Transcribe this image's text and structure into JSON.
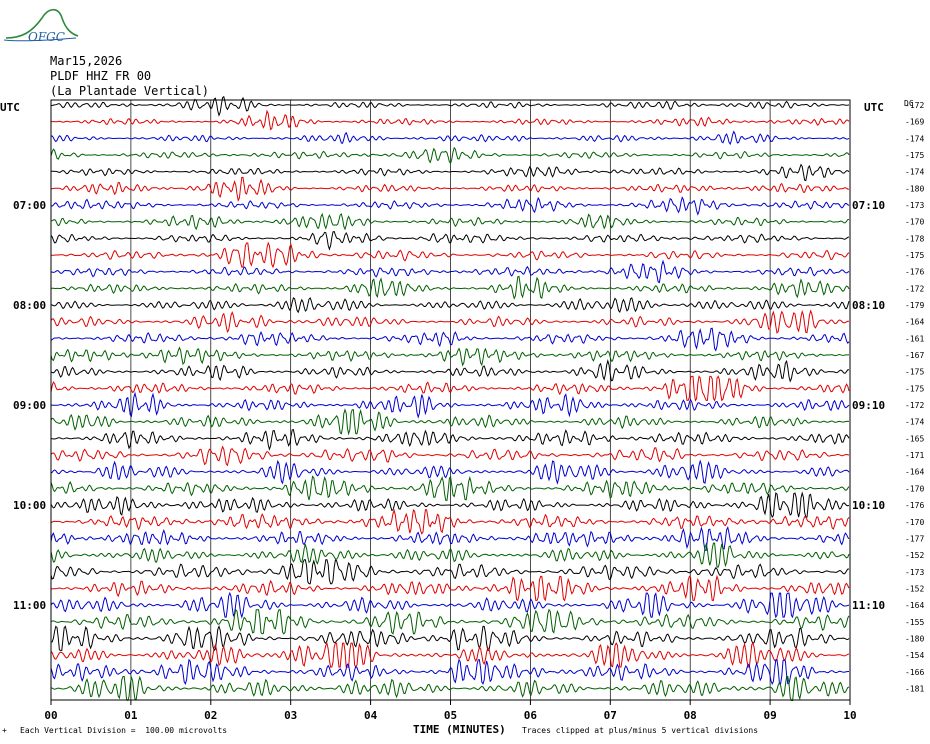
{
  "header": {
    "logo_text": "OFGC",
    "date": "Mar15,2026",
    "station": "PLDF HHZ FR 00",
    "location": "(La Plantade Vertical)"
  },
  "chart_data": {
    "type": "line",
    "title": "Mar15,2026",
    "utc_label": "UTC",
    "dc_label": "DC",
    "x_label": "TIME (MINUTES)",
    "x_ticks": [
      "00",
      "01",
      "02",
      "03",
      "04",
      "05",
      "06",
      "07",
      "08",
      "09",
      "10"
    ],
    "xlim": [
      0,
      10
    ],
    "row_count": 36,
    "trace_colors": [
      "#000000",
      "#e00000",
      "#0000d0",
      "#006000"
    ],
    "left_time_labels": [
      {
        "row": 6,
        "text": "07:00"
      },
      {
        "row": 12,
        "text": "08:00"
      },
      {
        "row": 18,
        "text": "09:00"
      },
      {
        "row": 24,
        "text": "10:00"
      },
      {
        "row": 30,
        "text": "11:00"
      }
    ],
    "right_time_labels": [
      {
        "row": 6,
        "text": "07:10"
      },
      {
        "row": 12,
        "text": "08:10"
      },
      {
        "row": 18,
        "text": "09:10"
      },
      {
        "row": 24,
        "text": "10:10"
      },
      {
        "row": 30,
        "text": "11:10"
      }
    ],
    "dc_offsets": [
      "-172",
      "-169",
      "-174",
      "-175",
      "-174",
      "-180",
      "-173",
      "-170",
      "-178",
      "-175",
      "-176",
      "-172",
      "-179",
      "-164",
      "-161",
      "-167",
      "-175",
      "-175",
      "-172",
      "-174",
      "-165",
      "-171",
      "-164",
      "-170",
      "-176",
      "-170",
      "-177",
      "-152",
      "-173",
      "-152",
      "-164",
      "-155",
      "-180",
      "-154",
      "-166",
      "-181"
    ]
  },
  "footer": {
    "scale_mark": "+",
    "vertical_division": "Each Vertical Division =  100.00 microvolts",
    "clip_note": "Traces clipped at plus/minus 5 vertical divisions"
  }
}
